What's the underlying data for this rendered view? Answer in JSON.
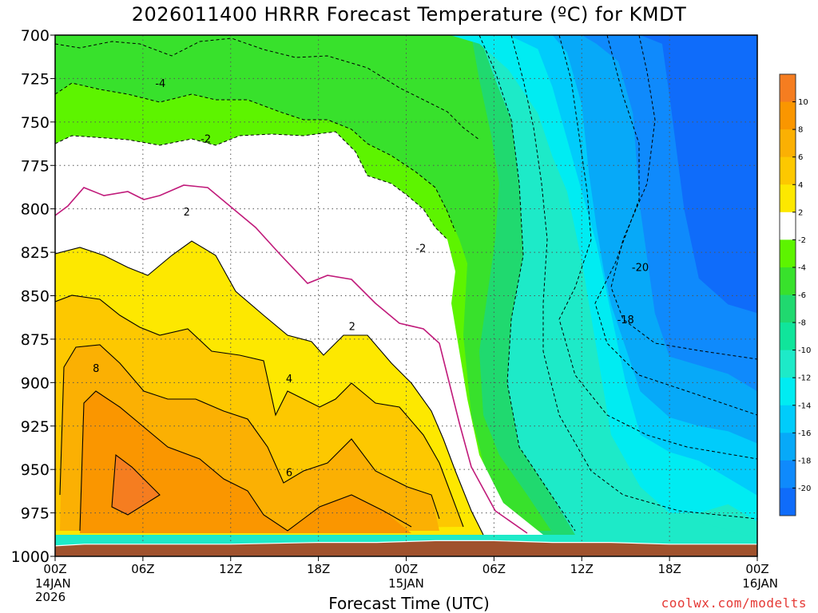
{
  "title": "2026011400 HRRR Forecast Temperature (ºC) for KMDT",
  "xlabel": "Forecast Time (UTC)",
  "credit": "coolwx.com/modelts",
  "colors": {
    "terrain": "#a0522d",
    "freezing_line": "#c01a7a",
    "grid": "#888888",
    "credit": "#e53935"
  },
  "chart_data": {
    "type": "heatmap",
    "description": "time-height contour of temperature",
    "x_ticks_hours": [
      0,
      6,
      12,
      18,
      24,
      30,
      36,
      42,
      48
    ],
    "x_tick_labels": [
      "00Z",
      "06Z",
      "12Z",
      "18Z",
      "00Z",
      "06Z",
      "12Z",
      "18Z",
      "00Z"
    ],
    "x_date_labels": [
      {
        "at_hour": 0,
        "lines": [
          "14JAN",
          "2026"
        ]
      },
      {
        "at_hour": 24,
        "lines": [
          "15JAN"
        ]
      },
      {
        "at_hour": 48,
        "lines": [
          "16JAN"
        ]
      }
    ],
    "xlim_hours": [
      0,
      48
    ],
    "y_ticks_hpa": [
      700,
      725,
      750,
      775,
      800,
      825,
      850,
      875,
      900,
      925,
      950,
      975,
      1000
    ],
    "ylim_hpa": [
      700,
      1000
    ],
    "surface_pressure_hpa": {
      "hours": [
        0,
        2,
        6,
        12,
        18,
        22,
        26,
        30,
        34,
        38,
        42,
        46,
        48
      ],
      "values": [
        994,
        993,
        993,
        993,
        992,
        992,
        991,
        991,
        992,
        992,
        993,
        993,
        993
      ]
    },
    "colorbar": {
      "levels": [
        12,
        10,
        8,
        6,
        4,
        2,
        -2,
        -4,
        -6,
        -8,
        -10,
        -12,
        -14,
        -16,
        -18,
        -20,
        -22
      ],
      "tick_labels": [
        "10",
        "8",
        "6",
        "4",
        "2",
        "-2",
        "-4",
        "-6",
        "-8",
        "-10",
        "-12",
        "-14",
        "-16",
        "-18",
        "-20"
      ],
      "colors": [
        "#f57d20",
        "#fa9600",
        "#fbb003",
        "#fdc800",
        "#fde800",
        "#ffffff",
        "#5df400",
        "#38e12c",
        "#20d96f",
        "#10e59b",
        "#1deac8",
        "#00ecf2",
        "#00ccfb",
        "#07a9f8",
        "#0f8afc",
        "#0f6cfa"
      ]
    },
    "regions": [
      {
        "level": -10,
        "color": "#1deac8",
        "hours": [
          0,
          10,
          20,
          30,
          34,
          36,
          40,
          44,
          48
        ],
        "values": [
          700,
          700,
          700,
          700,
          700,
          700,
          980,
          980,
          990
        ]
      },
      {
        "level": -12,
        "color": "#00ecf2",
        "hours": [
          27,
          29,
          31,
          33,
          34,
          35,
          36,
          37,
          38,
          40,
          42,
          44,
          46,
          48
        ],
        "values": [
          700,
          705,
          720,
          745,
          770,
          790,
          830,
          880,
          930,
          960,
          975,
          975,
          970,
          980
        ]
      },
      {
        "level": -14,
        "color": "#00ccfb",
        "hours": [
          31,
          33,
          34,
          35,
          36,
          37,
          38,
          39,
          40,
          42,
          44,
          46,
          48
        ],
        "values": [
          700,
          708,
          730,
          760,
          790,
          820,
          860,
          900,
          930,
          940,
          945,
          955,
          965
        ]
      },
      {
        "level": -16,
        "color": "#07a9f8",
        "hours": [
          34,
          35,
          36,
          36.5,
          37,
          37.5,
          38,
          39,
          40,
          42,
          44,
          46,
          48
        ],
        "values": [
          700,
          710,
          740,
          780,
          810,
          835,
          855,
          880,
          905,
          920,
          925,
          928,
          935
        ]
      },
      {
        "level": -18,
        "color": "#0f8afc",
        "hours": [
          36,
          37,
          38.5,
          39.5,
          40,
          41,
          42,
          44,
          46,
          48
        ],
        "values": [
          700,
          705,
          715,
          745,
          800,
          860,
          885,
          890,
          895,
          905
        ]
      },
      {
        "level": -20,
        "color": "#0f6cfa",
        "hours": [
          40,
          41.5,
          42,
          43,
          44,
          46,
          48
        ],
        "values": [
          700,
          705,
          735,
          800,
          840,
          855,
          860
        ]
      }
    ],
    "contour_labels": [
      {
        "text": "-4",
        "hour": 7.2,
        "hpa": 728
      },
      {
        "text": "-2",
        "hour": 10.3,
        "hpa": 760
      },
      {
        "text": "2",
        "hour": 9.0,
        "hpa": 802
      },
      {
        "text": "2",
        "hour": 20.3,
        "hpa": 868
      },
      {
        "text": "4",
        "hour": 16.0,
        "hpa": 898
      },
      {
        "text": "6",
        "hour": 16.0,
        "hpa": 952
      },
      {
        "text": "8",
        "hour": 2.8,
        "hpa": 892
      },
      {
        "text": "-2",
        "hour": 25.0,
        "hpa": 823
      },
      {
        "text": "-20",
        "hour": 40.0,
        "hpa": 834
      },
      {
        "text": "-18",
        "hour": 39.0,
        "hpa": 864
      }
    ]
  }
}
